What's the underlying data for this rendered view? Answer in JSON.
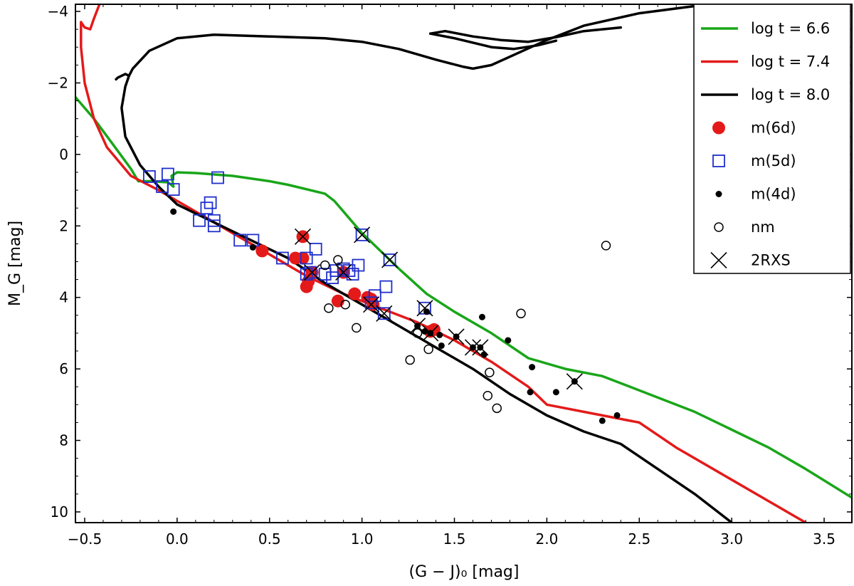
{
  "chart_data": {
    "type": "scatter",
    "xlabel": "(G − J)₀ [mag]",
    "ylabel": "M_G [mag]",
    "xlim": [
      -0.55,
      3.65
    ],
    "ylim": [
      10.3,
      -4.2
    ],
    "y_inverted": true,
    "grid": false,
    "legend_position": "top-right",
    "xticks": [
      -0.5,
      0.0,
      0.5,
      1.0,
      1.5,
      2.0,
      2.5,
      3.0,
      3.5
    ],
    "xtick_labels": [
      "−0.5",
      "0.0",
      "0.5",
      "1.0",
      "1.5",
      "2.0",
      "2.5",
      "3.0",
      "3.5"
    ],
    "yticks": [
      -4,
      -2,
      0,
      2,
      4,
      6,
      8,
      10
    ],
    "ytick_labels": [
      "−4",
      "−2",
      "0",
      "2",
      "4",
      "6",
      "8",
      "10"
    ],
    "isochrones": [
      {
        "name": "log t = 6.6",
        "label_main": "log t = ",
        "label_value": "6.6",
        "color": "#19a619",
        "segments": [
          [
            [
              -0.55,
              -1.6
            ],
            [
              -0.45,
              -1.0
            ],
            [
              -0.35,
              -0.3
            ],
            [
              -0.25,
              0.4
            ],
            [
              -0.21,
              0.75
            ],
            [
              -0.15,
              0.75
            ],
            [
              -0.05,
              0.78
            ],
            [
              -0.02,
              0.9
            ],
            [
              -0.03,
              0.6
            ],
            [
              0.0,
              0.5
            ],
            [
              0.1,
              0.52
            ],
            [
              0.3,
              0.6
            ],
            [
              0.5,
              0.75
            ],
            [
              0.6,
              0.85
            ],
            [
              0.8,
              1.1
            ],
            [
              0.85,
              1.3
            ],
            [
              0.9,
              1.6
            ],
            [
              0.95,
              1.9
            ],
            [
              1.0,
              2.2
            ],
            [
              1.1,
              2.7
            ],
            [
              1.2,
              3.2
            ],
            [
              1.35,
              3.9
            ],
            [
              1.5,
              4.4
            ],
            [
              1.7,
              5.0
            ],
            [
              1.9,
              5.7
            ],
            [
              2.1,
              6.0
            ],
            [
              2.3,
              6.2
            ],
            [
              2.5,
              6.6
            ],
            [
              2.8,
              7.2
            ],
            [
              3.0,
              7.7
            ],
            [
              3.2,
              8.2
            ],
            [
              3.4,
              8.8
            ],
            [
              3.65,
              9.6
            ]
          ]
        ]
      },
      {
        "name": "log t = 7.4",
        "label_main": "log t = ",
        "label_value": "7.4",
        "color": "#e41a1a",
        "segments": [
          [
            [
              -0.52,
              -3.7
            ],
            [
              -0.5,
              -3.55
            ],
            [
              -0.47,
              -3.5
            ],
            [
              -0.45,
              -3.8
            ],
            [
              -0.42,
              -4.2
            ]
          ],
          [
            [
              -0.52,
              -3.7
            ],
            [
              -0.52,
              -3.0
            ],
            [
              -0.5,
              -2.0
            ],
            [
              -0.45,
              -1.0
            ],
            [
              -0.38,
              -0.2
            ],
            [
              -0.25,
              0.6
            ],
            [
              -0.1,
              1.0
            ],
            [
              0.1,
              1.6
            ],
            [
              0.3,
              2.2
            ],
            [
              0.5,
              2.8
            ],
            [
              0.7,
              3.4
            ],
            [
              0.9,
              3.9
            ],
            [
              1.1,
              4.3
            ],
            [
              1.3,
              4.7
            ],
            [
              1.5,
              5.2
            ],
            [
              1.7,
              5.8
            ],
            [
              1.9,
              6.5
            ],
            [
              2.0,
              7.0
            ],
            [
              2.3,
              7.3
            ],
            [
              2.5,
              7.5
            ],
            [
              2.7,
              8.2
            ],
            [
              3.0,
              9.1
            ],
            [
              3.2,
              9.7
            ],
            [
              3.4,
              10.3
            ]
          ]
        ]
      },
      {
        "name": "log t = 8.0",
        "label_main": "log t = ",
        "label_value": "8.0",
        "color": "#000000",
        "segments": [
          [
            [
              -0.33,
              -2.1
            ],
            [
              -0.32,
              -2.15
            ],
            [
              -0.28,
              -2.25
            ],
            [
              -0.26,
              -2.2
            ]
          ],
          [
            [
              -0.26,
              -2.2
            ],
            [
              -0.24,
              -2.4
            ],
            [
              -0.15,
              -2.9
            ],
            [
              0.0,
              -3.25
            ],
            [
              0.2,
              -3.35
            ],
            [
              0.5,
              -3.3
            ],
            [
              0.8,
              -3.25
            ],
            [
              1.0,
              -3.15
            ],
            [
              1.2,
              -2.95
            ],
            [
              1.4,
              -2.65
            ],
            [
              1.55,
              -2.45
            ],
            [
              1.6,
              -2.4
            ],
            [
              1.7,
              -2.5
            ],
            [
              1.85,
              -2.85
            ],
            [
              2.0,
              -3.2
            ],
            [
              2.2,
              -3.6
            ],
            [
              2.5,
              -3.95
            ],
            [
              2.8,
              -4.15
            ],
            [
              3.2,
              -4.3
            ],
            [
              3.5,
              -4.35
            ]
          ],
          [
            [
              1.37,
              -3.38
            ],
            [
              1.45,
              -3.45
            ],
            [
              1.6,
              -3.3
            ],
            [
              1.75,
              -3.2
            ],
            [
              1.9,
              -3.15
            ],
            [
              2.05,
              -3.28
            ],
            [
              2.2,
              -3.45
            ],
            [
              2.4,
              -3.55
            ]
          ],
          [
            [
              1.37,
              -3.38
            ],
            [
              1.5,
              -3.25
            ],
            [
              1.7,
              -3.0
            ],
            [
              1.82,
              -2.95
            ],
            [
              1.95,
              -3.05
            ],
            [
              2.05,
              -3.18
            ]
          ],
          [
            [
              -0.26,
              -2.2
            ],
            [
              -0.28,
              -1.9
            ],
            [
              -0.3,
              -1.3
            ],
            [
              -0.28,
              -0.5
            ],
            [
              -0.2,
              0.3
            ],
            [
              -0.1,
              0.9
            ],
            [
              0.0,
              1.4
            ],
            [
              0.2,
              1.9
            ],
            [
              0.4,
              2.4
            ],
            [
              0.6,
              2.9
            ],
            [
              0.8,
              3.6
            ],
            [
              1.0,
              4.2
            ],
            [
              1.2,
              4.8
            ],
            [
              1.4,
              5.4
            ],
            [
              1.6,
              6.0
            ],
            [
              1.8,
              6.7
            ],
            [
              2.0,
              7.3
            ],
            [
              2.2,
              7.75
            ],
            [
              2.4,
              8.1
            ],
            [
              2.6,
              8.8
            ],
            [
              2.8,
              9.5
            ],
            [
              3.0,
              10.3
            ]
          ]
        ]
      }
    ],
    "series": [
      {
        "name": "m(6d)",
        "marker": "filled-circle",
        "color": "#e41a1a",
        "points": [
          [
            0.68,
            2.3
          ],
          [
            0.46,
            2.7
          ],
          [
            0.64,
            2.9
          ],
          [
            0.68,
            2.9
          ],
          [
            0.73,
            3.3
          ],
          [
            0.71,
            3.55
          ],
          [
            0.7,
            3.7
          ],
          [
            0.9,
            3.3
          ],
          [
            0.96,
            3.9
          ],
          [
            0.87,
            4.1
          ],
          [
            1.03,
            4.0
          ],
          [
            1.06,
            4.2
          ],
          [
            1.05,
            4.05
          ],
          [
            1.39,
            4.9
          ],
          [
            1.37,
            4.95
          ]
        ]
      },
      {
        "name": "m(5d)",
        "marker": "open-square",
        "color": "#1f2fcc",
        "points": [
          [
            -0.15,
            0.62
          ],
          [
            -0.05,
            0.55
          ],
          [
            -0.08,
            0.9
          ],
          [
            -0.02,
            0.98
          ],
          [
            0.22,
            0.65
          ],
          [
            0.18,
            1.35
          ],
          [
            0.16,
            1.5
          ],
          [
            0.12,
            1.85
          ],
          [
            0.2,
            1.85
          ],
          [
            0.2,
            2.0
          ],
          [
            0.34,
            2.4
          ],
          [
            0.41,
            2.4
          ],
          [
            0.57,
            2.9
          ],
          [
            0.7,
            2.9
          ],
          [
            0.75,
            2.65
          ],
          [
            0.72,
            3.3
          ],
          [
            0.7,
            3.35
          ],
          [
            0.8,
            3.35
          ],
          [
            0.84,
            3.45
          ],
          [
            0.86,
            3.25
          ],
          [
            0.9,
            3.2
          ],
          [
            0.93,
            3.25
          ],
          [
            0.98,
            3.1
          ],
          [
            0.95,
            3.35
          ],
          [
            1.0,
            2.25
          ],
          [
            1.15,
            2.95
          ],
          [
            1.13,
            3.7
          ],
          [
            1.07,
            3.95
          ],
          [
            1.05,
            4.15
          ],
          [
            1.12,
            4.45
          ],
          [
            1.34,
            4.3
          ]
        ]
      },
      {
        "name": "m(4d)",
        "marker": "small-dot",
        "color": "#000000",
        "points": [
          [
            -0.02,
            1.6
          ],
          [
            0.41,
            2.6
          ],
          [
            1.35,
            4.4
          ],
          [
            1.3,
            4.8
          ],
          [
            1.34,
            4.95
          ],
          [
            1.37,
            5.0
          ],
          [
            1.42,
            5.05
          ],
          [
            1.43,
            5.35
          ],
          [
            1.51,
            5.1
          ],
          [
            1.6,
            5.4
          ],
          [
            1.64,
            5.4
          ],
          [
            1.66,
            5.6
          ],
          [
            1.65,
            4.55
          ],
          [
            1.79,
            5.2
          ],
          [
            1.92,
            5.95
          ],
          [
            1.91,
            6.65
          ],
          [
            2.05,
            6.65
          ],
          [
            2.15,
            6.35
          ],
          [
            2.3,
            7.45
          ],
          [
            2.38,
            7.3
          ]
        ]
      },
      {
        "name": "nm",
        "marker": "open-circle",
        "color": "#000000",
        "points": [
          [
            0.8,
            3.1
          ],
          [
            0.87,
            2.95
          ],
          [
            0.82,
            4.3
          ],
          [
            0.91,
            4.2
          ],
          [
            0.97,
            4.85
          ],
          [
            1.26,
            5.75
          ],
          [
            1.3,
            5.0
          ],
          [
            1.36,
            5.45
          ],
          [
            1.69,
            6.1
          ],
          [
            1.68,
            6.75
          ],
          [
            1.73,
            7.1
          ],
          [
            1.86,
            4.45
          ],
          [
            2.32,
            2.55
          ]
        ]
      },
      {
        "name": "2RXS",
        "marker": "x-cross",
        "color": "#000000",
        "points": [
          [
            0.68,
            2.3
          ],
          [
            0.73,
            3.3
          ],
          [
            0.9,
            3.3
          ],
          [
            1.0,
            2.25
          ],
          [
            1.15,
            2.95
          ],
          [
            1.05,
            4.2
          ],
          [
            1.12,
            4.45
          ],
          [
            1.34,
            4.3
          ],
          [
            1.3,
            4.8
          ],
          [
            1.37,
            5.0
          ],
          [
            1.51,
            5.1
          ],
          [
            1.6,
            5.4
          ],
          [
            1.64,
            5.4
          ],
          [
            2.15,
            6.35
          ]
        ]
      }
    ]
  }
}
